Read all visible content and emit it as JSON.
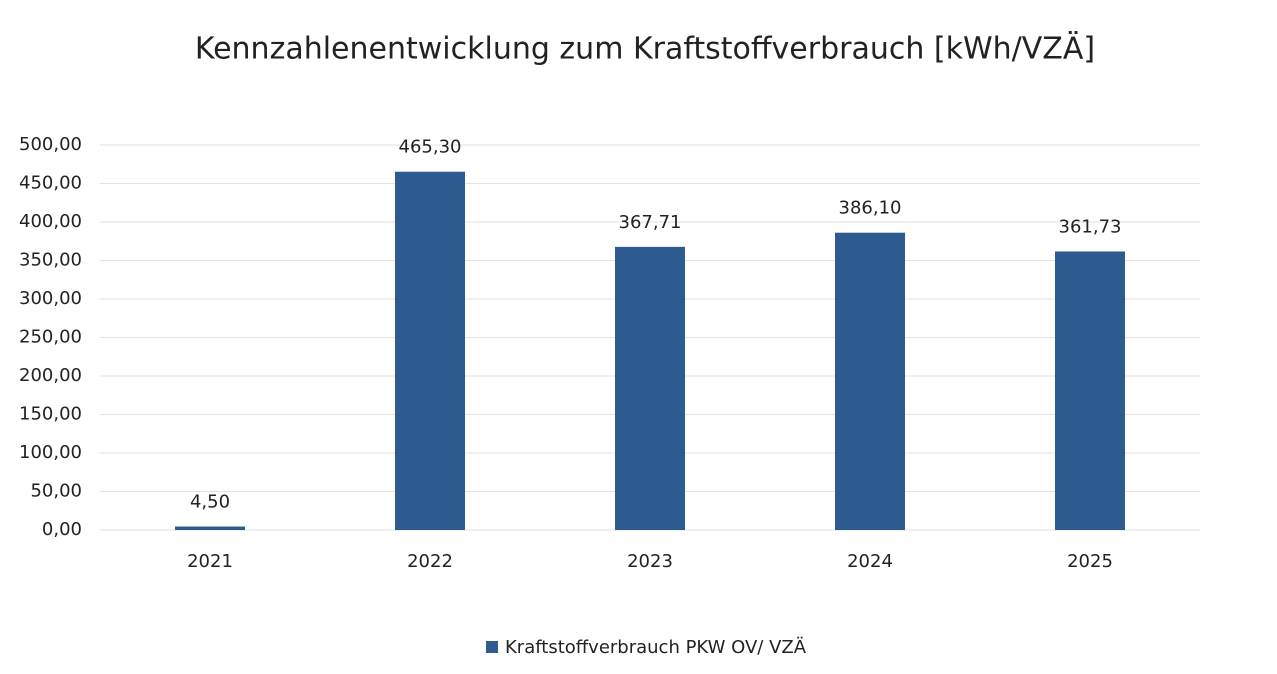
{
  "chart_data": {
    "type": "bar",
    "title": "Kennzahlenentwicklung zum Kraftstoffverbrauch [kWh/VZÄ]",
    "categories": [
      "2021",
      "2022",
      "2023",
      "2024",
      "2025"
    ],
    "series": [
      {
        "name": "Kraftstoffverbrauch PKW OV/ VZÄ",
        "color": "#2e5b8f",
        "values": [
          4.5,
          465.3,
          367.71,
          386.1,
          361.73
        ],
        "value_labels": [
          "4,50",
          "465,30",
          "367,71",
          "386,10",
          "361,73"
        ]
      }
    ],
    "ylim": [
      0,
      500
    ],
    "yticks": [
      {
        "value": 0,
        "label": "0,00"
      },
      {
        "value": 50,
        "label": "50,00"
      },
      {
        "value": 100,
        "label": "100,00"
      },
      {
        "value": 150,
        "label": "150,00"
      },
      {
        "value": 200,
        "label": "200,00"
      },
      {
        "value": 250,
        "label": "250,00"
      },
      {
        "value": 300,
        "label": "300,00"
      },
      {
        "value": 350,
        "label": "350,00"
      },
      {
        "value": 400,
        "label": "400,00"
      },
      {
        "value": 450,
        "label": "450,00"
      },
      {
        "value": 500,
        "label": "500,00"
      }
    ],
    "grid": true,
    "legend": "bottom"
  }
}
